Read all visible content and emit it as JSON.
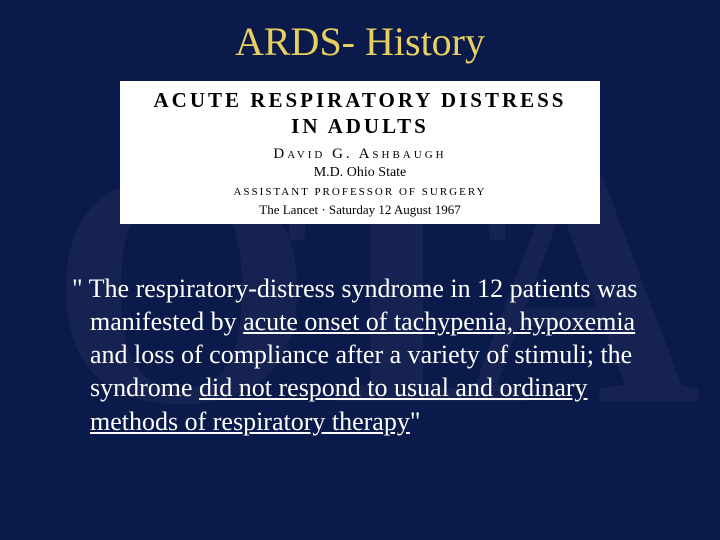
{
  "colors": {
    "background": "#0a1a4a",
    "watermark": "#162352",
    "title": "#e8d060",
    "body_text": "#ffffff",
    "clipping_bg": "#ffffff",
    "clipping_text": "#000000"
  },
  "watermark_text": "OTA",
  "slide": {
    "title": "ARDS- History"
  },
  "clipping": {
    "title_line1": "ACUTE  RESPIRATORY  DISTRESS",
    "title_line2": "IN  ADULTS",
    "author": "David  G.  Ashbaugh",
    "affiliation": "M.D. Ohio State",
    "role": "ASSISTANT  PROFESSOR  OF  SURGERY",
    "source": "The Lancet · Saturday 12 August 1967"
  },
  "quote": {
    "open": "\" ",
    "p1": "The respiratory-distress syndrome in 12 patients was manifested by ",
    "u1": "acute onset of tachypenia, hypoxemia",
    "p2": " and loss of compliance after a variety of stimuli; the syndrome ",
    "u2": "did not respond to usual and ordinary methods of respiratory therapy",
    "close": "\""
  }
}
